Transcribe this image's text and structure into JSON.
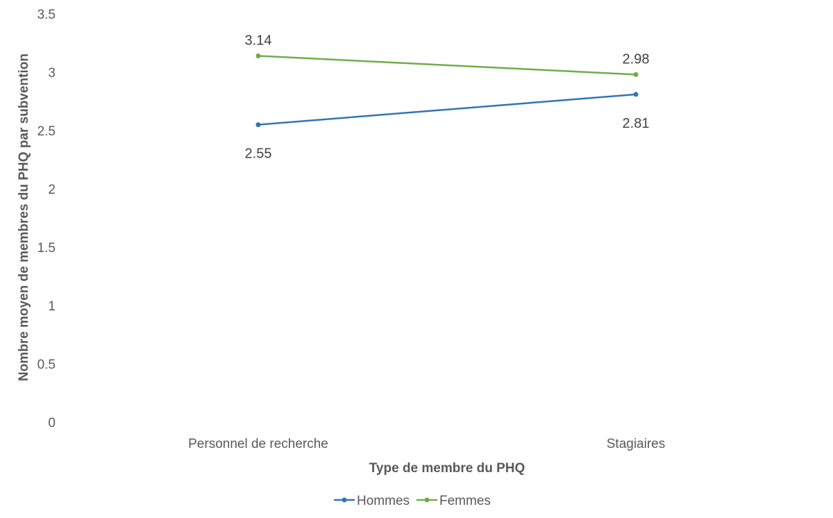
{
  "chart_data": {
    "type": "line",
    "categories": [
      "Personnel de recherche",
      "Stagiaires"
    ],
    "series": [
      {
        "name": "Hommes",
        "values": [
          2.55,
          2.81
        ],
        "color": "#2E75B6",
        "labels": [
          "2.55",
          "2.81"
        ]
      },
      {
        "name": "Femmes",
        "values": [
          3.14,
          2.98
        ],
        "color": "#70AD47",
        "labels": [
          "3.14",
          "2.98"
        ]
      }
    ],
    "xlabel": "Type de membre du PHQ",
    "ylabel": "Nombre moyen de membres du PHQ par subvention",
    "ylim": [
      0,
      3.5
    ],
    "yticks": [
      "0",
      "0.5",
      "1",
      "1.5",
      "2",
      "2.5",
      "3",
      "3.5"
    ],
    "grid": false,
    "legend": "bottom"
  }
}
